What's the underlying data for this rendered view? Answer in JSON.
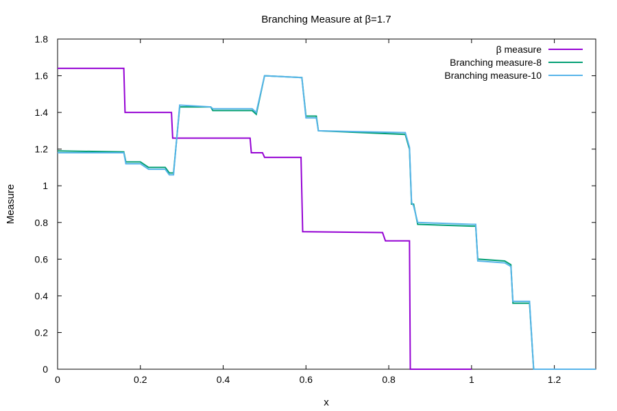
{
  "chart_data": {
    "type": "line",
    "title": "Branching Measure at  β=1.7",
    "xlabel": "x",
    "ylabel": "Measure",
    "xlim": [
      0,
      1.3
    ],
    "ylim": [
      0,
      1.8
    ],
    "xticks": [
      0,
      0.2,
      0.4,
      0.6,
      0.8,
      1,
      1.2
    ],
    "xtick_labels": [
      "0",
      "0.2",
      "0.4",
      "0.6",
      "0.8",
      "1",
      "1.2"
    ],
    "yticks": [
      0,
      0.2,
      0.4,
      0.6,
      0.8,
      1,
      1.2,
      1.4,
      1.6,
      1.8
    ],
    "ytick_labels": [
      "0",
      "0.2",
      "0.4",
      "0.6",
      "0.8",
      "1",
      "1.2",
      "1.4",
      "1.6",
      "1.8"
    ],
    "grid": false,
    "legend_position": "top-right",
    "series": [
      {
        "name": "β measure",
        "color": "#9400d3",
        "x": [
          0,
          0.16,
          0.163,
          0.275,
          0.278,
          0.465,
          0.468,
          0.495,
          0.5,
          0.588,
          0.592,
          0.785,
          0.792,
          0.85,
          0.852,
          1.0
        ],
        "y": [
          1.64,
          1.64,
          1.4,
          1.4,
          1.26,
          1.26,
          1.18,
          1.18,
          1.155,
          1.155,
          0.75,
          0.745,
          0.7,
          0.7,
          0.0,
          0.0
        ]
      },
      {
        "name": "Branching measure-8",
        "color": "#009e73",
        "x": [
          0,
          0.16,
          0.165,
          0.2,
          0.22,
          0.26,
          0.27,
          0.28,
          0.295,
          0.37,
          0.375,
          0.47,
          0.48,
          0.5,
          0.59,
          0.6,
          0.625,
          0.63,
          0.84,
          0.85,
          0.855,
          0.86,
          0.87,
          1.0,
          1.01,
          1.015,
          1.08,
          1.095,
          1.1,
          1.14,
          1.15,
          1.3
        ],
        "y": [
          1.19,
          1.185,
          1.13,
          1.13,
          1.1,
          1.1,
          1.07,
          1.07,
          1.43,
          1.43,
          1.41,
          1.41,
          1.39,
          1.6,
          1.59,
          1.38,
          1.38,
          1.3,
          1.28,
          1.2,
          0.9,
          0.9,
          0.79,
          0.78,
          0.78,
          0.6,
          0.59,
          0.57,
          0.36,
          0.36,
          0.0,
          0.0
        ]
      },
      {
        "name": "Branching measure-10",
        "color": "#56b4e9",
        "x": [
          0,
          0.16,
          0.165,
          0.2,
          0.22,
          0.26,
          0.27,
          0.28,
          0.295,
          0.37,
          0.375,
          0.47,
          0.48,
          0.5,
          0.59,
          0.6,
          0.625,
          0.63,
          0.84,
          0.85,
          0.855,
          0.86,
          0.87,
          1.0,
          1.01,
          1.015,
          1.08,
          1.095,
          1.1,
          1.14,
          1.15,
          1.3
        ],
        "y": [
          1.18,
          1.18,
          1.12,
          1.12,
          1.09,
          1.09,
          1.06,
          1.06,
          1.44,
          1.43,
          1.42,
          1.42,
          1.4,
          1.6,
          1.59,
          1.37,
          1.37,
          1.3,
          1.29,
          1.21,
          0.91,
          0.89,
          0.8,
          0.79,
          0.79,
          0.59,
          0.58,
          0.56,
          0.37,
          0.37,
          0.0,
          0.0
        ]
      }
    ]
  }
}
